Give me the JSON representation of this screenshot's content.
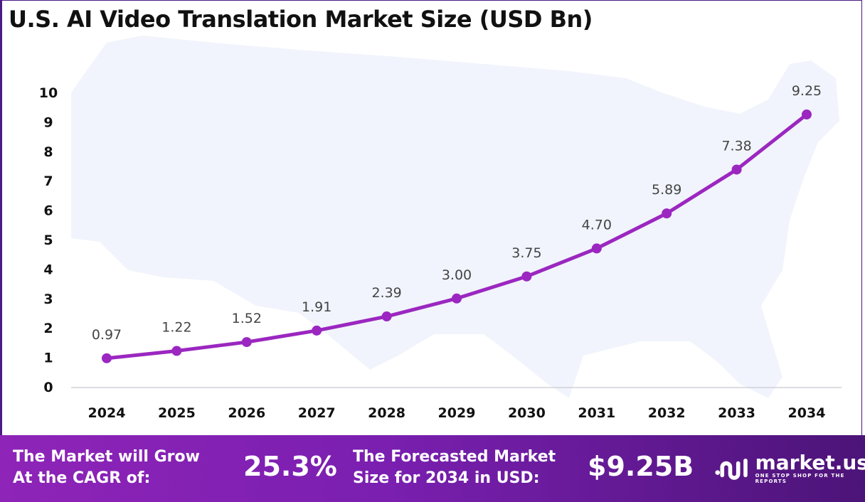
{
  "title": "U.S. AI Video Translation Market Size (USD Bn)",
  "chart_data": {
    "type": "line",
    "title": "U.S. AI Video Translation Market Size (USD Bn)",
    "categories": [
      "2024",
      "2025",
      "2026",
      "2027",
      "2028",
      "2029",
      "2030",
      "2031",
      "2032",
      "2033",
      "2034"
    ],
    "values": [
      0.97,
      1.22,
      1.52,
      1.91,
      2.39,
      3.0,
      3.75,
      4.7,
      5.89,
      7.38,
      9.25
    ],
    "data_labels": [
      "0.97",
      "1.22",
      "1.52",
      "1.91",
      "2.39",
      "3.00",
      "3.75",
      "4.70",
      "5.89",
      "7.38",
      "9.25"
    ],
    "y_ticks": [
      "0",
      "1",
      "2",
      "3",
      "4",
      "5",
      "6",
      "7",
      "8",
      "9",
      "10"
    ],
    "ylim": [
      0,
      10
    ],
    "grid": false,
    "line_color": "#9b27c0",
    "background": "US map silhouette"
  },
  "footer": {
    "cagr_label": [
      "The Market will Grow",
      "At the CAGR of:"
    ],
    "cagr_value": "25.3%",
    "forecast_label": [
      "The Forecasted Market",
      "Size for 2034 in USD:"
    ],
    "forecast_value": "$9.25B",
    "logo_name": "market.us",
    "logo_tagline": "ONE STOP SHOP FOR THE REPORTS"
  }
}
